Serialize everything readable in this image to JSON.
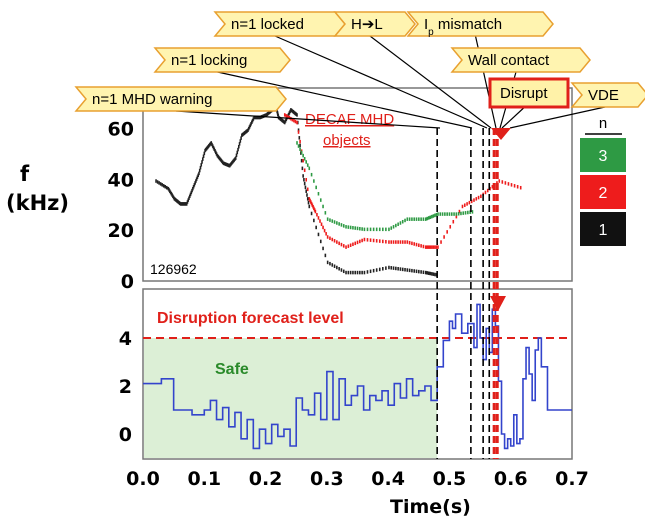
{
  "chart_data": [
    {
      "type": "scatter",
      "ylabel_line1": "f",
      "ylabel_line2": "(kHz)",
      "yticks": [
        "0",
        "20",
        "40",
        "60"
      ],
      "ylim": [
        0,
        75
      ],
      "xlim": [
        0.0,
        0.7
      ],
      "grid": false,
      "shot_number": "126962",
      "annotation": "DECAF MHD objects",
      "annotation_line1": "DECAF MHD",
      "annotation_line2": "objects",
      "legend": {
        "title": "n",
        "entries": [
          {
            "label": "3",
            "color": "#2e9a44"
          },
          {
            "label": "2",
            "color": "#ee1c1c"
          },
          {
            "label": "1",
            "color": "#111111"
          }
        ],
        "placement": "right"
      },
      "series": [
        {
          "name": "1",
          "color": "#222222",
          "points": [
            [
              0.02,
              40
            ],
            [
              0.04,
              37
            ],
            [
              0.05,
              33
            ],
            [
              0.06,
              31
            ],
            [
              0.07,
              31
            ],
            [
              0.08,
              37
            ],
            [
              0.09,
              43
            ],
            [
              0.1,
              52
            ],
            [
              0.11,
              55
            ],
            [
              0.12,
              50
            ],
            [
              0.13,
              47
            ],
            [
              0.14,
              46
            ],
            [
              0.15,
              49
            ],
            [
              0.16,
              58
            ],
            [
              0.17,
              60
            ],
            [
              0.18,
              65
            ],
            [
              0.19,
              65
            ],
            [
              0.2,
              66
            ],
            [
              0.21,
              68
            ],
            [
              0.215,
              70
            ],
            [
              0.22,
              65
            ],
            [
              0.23,
              63
            ],
            [
              0.24,
              68
            ],
            [
              0.25,
              66
            ],
            [
              0.26,
              42
            ],
            [
              0.27,
              30
            ],
            [
              0.3,
              8
            ],
            [
              0.33,
              4
            ],
            [
              0.36,
              4
            ],
            [
              0.4,
              6
            ],
            [
              0.43,
              5
            ],
            [
              0.46,
              4
            ],
            [
              0.48,
              3
            ]
          ]
        },
        {
          "name": "2",
          "color": "#ee1c1c",
          "points": [
            [
              0.23,
              66
            ],
            [
              0.25,
              63
            ],
            [
              0.27,
              33
            ],
            [
              0.28,
              28
            ],
            [
              0.3,
              18
            ],
            [
              0.33,
              14
            ],
            [
              0.36,
              17
            ],
            [
              0.4,
              16
            ],
            [
              0.43,
              16
            ],
            [
              0.46,
              14
            ],
            [
              0.48,
              14
            ],
            [
              0.52,
              30
            ],
            [
              0.55,
              34
            ],
            [
              0.58,
              40
            ],
            [
              0.62,
              37
            ]
          ]
        },
        {
          "name": "3",
          "color": "#2e9a44",
          "points": [
            [
              0.25,
              55
            ],
            [
              0.27,
              45
            ],
            [
              0.3,
              25
            ],
            [
              0.33,
              22
            ],
            [
              0.36,
              21
            ],
            [
              0.4,
              21
            ],
            [
              0.43,
              25
            ],
            [
              0.46,
              25
            ],
            [
              0.48,
              27
            ],
            [
              0.51,
              27
            ],
            [
              0.54,
              28
            ]
          ]
        }
      ],
      "markers": {
        "times": [
          0.48,
          0.535,
          0.555,
          0.565,
          0.573,
          0.578
        ],
        "tags": [
          {
            "label": "n=1 MHD warning",
            "time": 0.48
          },
          {
            "label": "n=1 locking",
            "time": 0.535
          },
          {
            "label": "n=1 locked",
            "time": 0.555
          },
          {
            "label": "H➔L",
            "time": 0.565
          },
          {
            "label_main": "I",
            "label_sub": "p",
            "label_rest": " mismatch",
            "time": 0.573
          },
          {
            "label": "Wall contact",
            "time": 0.578
          },
          {
            "label": "Disrupt",
            "time": 0.575
          },
          {
            "label": "VDE",
            "time": 0.578
          }
        ]
      }
    },
    {
      "type": "line",
      "xlabel": "Time(s)",
      "xticks": [
        "0.0",
        "0.1",
        "0.2",
        "0.3",
        "0.4",
        "0.5",
        "0.6",
        "0.7"
      ],
      "yticks": [
        "0",
        "2",
        "4"
      ],
      "xlim": [
        0.0,
        0.7
      ],
      "ylim": [
        -0.8,
        5.8
      ],
      "threshold": {
        "value": 4,
        "label": "Disruption forecast level",
        "color": "#e0201a"
      },
      "safe_region": {
        "x_end": 0.48,
        "label": "Safe",
        "color": "#2a8a2a",
        "fill": "#dff0d8"
      },
      "series": [
        {
          "name": "",
          "color": "#3344cc",
          "x": [
            0.0,
            0.03,
            0.03,
            0.05,
            0.05,
            0.06,
            0.08,
            0.1,
            0.11,
            0.12,
            0.13,
            0.14,
            0.15,
            0.16,
            0.17,
            0.18,
            0.19,
            0.2,
            0.21,
            0.22,
            0.23,
            0.24,
            0.25,
            0.26,
            0.27,
            0.28,
            0.29,
            0.3,
            0.31,
            0.32,
            0.33,
            0.34,
            0.35,
            0.36,
            0.37,
            0.38,
            0.39,
            0.4,
            0.41,
            0.42,
            0.43,
            0.44,
            0.45,
            0.46,
            0.47,
            0.48,
            0.49,
            0.5,
            0.505,
            0.51,
            0.52,
            0.53,
            0.54,
            0.545,
            0.55,
            0.555,
            0.56,
            0.565,
            0.57,
            0.575,
            0.58,
            0.585,
            0.59,
            0.595,
            0.6,
            0.605,
            0.61,
            0.615,
            0.62,
            0.625,
            0.63,
            0.635,
            0.64,
            0.645,
            0.65,
            0.66,
            0.67,
            0.7
          ],
          "y": [
            2.1,
            2.1,
            2.3,
            2.3,
            1.0,
            1.0,
            0.8,
            1.0,
            1.4,
            0.6,
            1.1,
            0.3,
            0.9,
            -0.2,
            0.6,
            -0.6,
            0.2,
            -0.4,
            0.4,
            -0.1,
            0.2,
            -0.5,
            1.5,
            1.0,
            0.8,
            1.7,
            0.6,
            2.6,
            0.6,
            2.3,
            1.2,
            1.6,
            2.0,
            1.0,
            1.6,
            1.4,
            1.8,
            1.2,
            2.1,
            1.5,
            2.3,
            1.6,
            1.8,
            2.0,
            1.4,
            2.8,
            3.9,
            4.7,
            4.4,
            5.0,
            4.2,
            4.6,
            3.6,
            5.4,
            4.0,
            3.1,
            4.4,
            3.4,
            5.2,
            4.5,
            2.2,
            0.0,
            -0.6,
            -0.2,
            -0.5,
            0.8,
            -0.4,
            -0.2,
            2.3,
            3.6,
            2.5,
            1.4,
            3.5,
            4.0,
            2.8,
            1.0,
            1.0,
            1.0
          ]
        }
      ]
    }
  ]
}
